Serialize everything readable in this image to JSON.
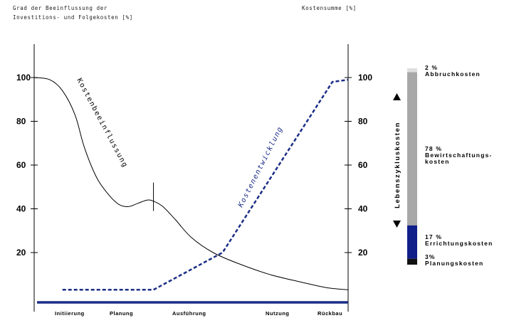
{
  "chart_data": {
    "type": "line",
    "left_axis_title": [
      "Grad der Beeinflussung der",
      "Investitions- und Folgekosten [%]"
    ],
    "right_axis_title": "Kostensumme [%]",
    "y_ticks": [
      20,
      40,
      60,
      80,
      100
    ],
    "ylim": [
      -10,
      115
    ],
    "xlim": [
      0,
      100
    ],
    "phases": [
      "Initiierung",
      "Planung",
      "Ausführung",
      "Nutzung",
      "Rückbau"
    ],
    "series": [
      {
        "name": "Kostenbeeinflussung",
        "color": "#000000",
        "style": "solid",
        "x": [
          0,
          5,
          9,
          13,
          16,
          20,
          24,
          27,
          30,
          33,
          36,
          38,
          41,
          45,
          50,
          57,
          65,
          75,
          85,
          93,
          100
        ],
        "y": [
          100,
          99,
          94,
          83,
          68,
          54,
          46,
          42,
          41,
          42.5,
          44,
          43.5,
          41,
          35,
          27,
          20,
          15,
          10,
          6.5,
          4,
          3
        ]
      },
      {
        "name": "Kostenentwicklung",
        "color": "#1b2d86",
        "style": "dashed",
        "x": [
          9,
          38,
          60,
          95,
          100
        ],
        "y": [
          3,
          3,
          20,
          98,
          99
        ]
      }
    ],
    "annotation": {
      "x": 38,
      "y_range": [
        39,
        52
      ]
    },
    "baseline_color": "#1b2d86"
  },
  "lifecycle_bar": {
    "label": "Lebenszykluskosten",
    "segments": [
      {
        "pct": "2 %",
        "lines": [
          "Abbruchkosten"
        ],
        "share": 2,
        "color": "#dedede"
      },
      {
        "pct": "78 %",
        "lines": [
          "Bewirtschaftungs-",
          "kosten"
        ],
        "share": 78,
        "color": "#a8a8a8"
      },
      {
        "pct": "17 %",
        "lines": [
          "Errichtungskosten"
        ],
        "share": 17,
        "color": "#101f8a"
      },
      {
        "pct": "3%",
        "lines": [
          "Planungskosten"
        ],
        "share": 3,
        "color": "#111111"
      }
    ]
  }
}
